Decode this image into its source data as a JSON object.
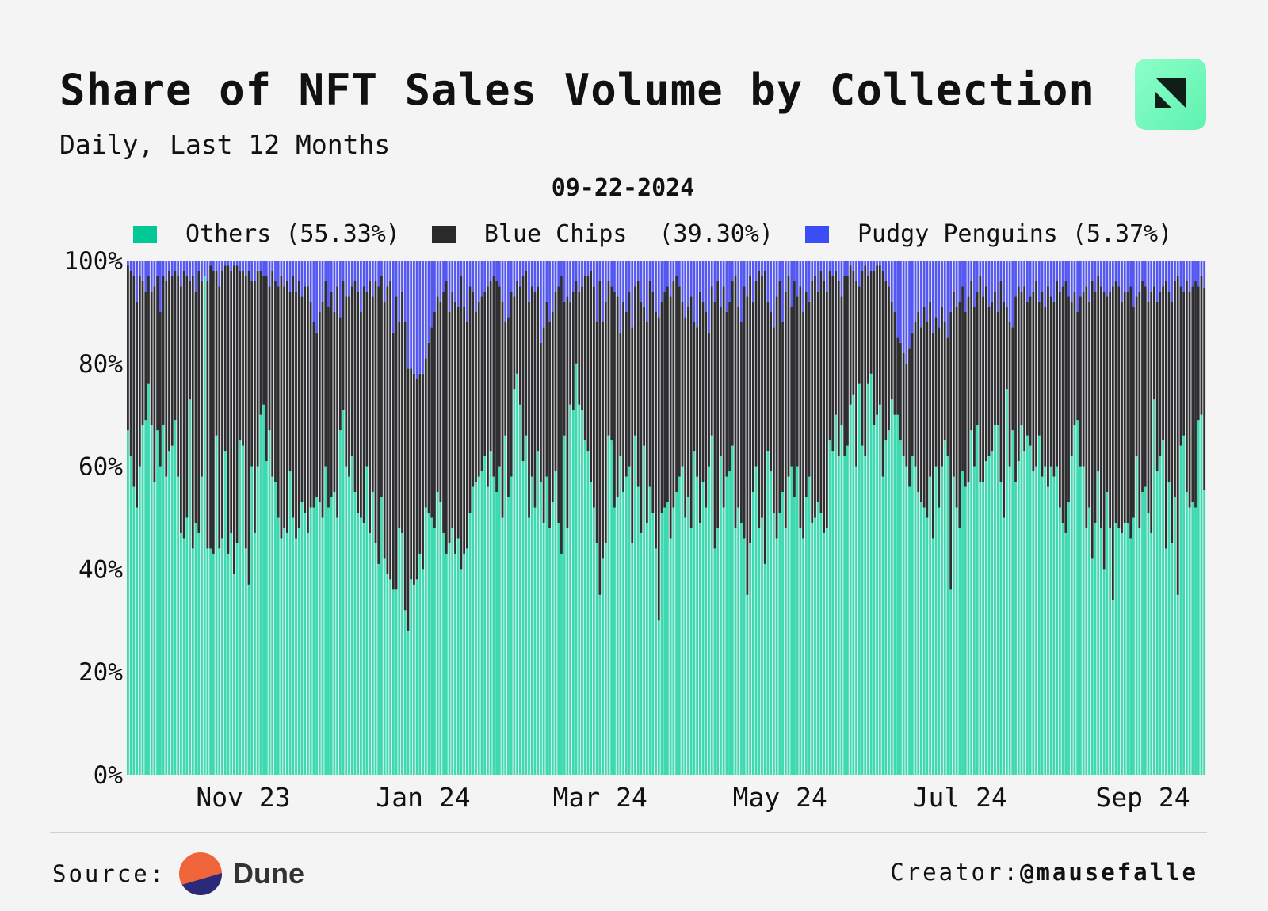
{
  "header": {
    "title": "Share of NFT Sales Volume by Collection",
    "subtitle": "Daily, Last 12 Months",
    "logo_icon": "dune-square-logo-icon"
  },
  "footer": {
    "source_label": "Source:",
    "source_name": "Dune",
    "creator_label": "Creator:",
    "creator_handle": "@mausefalle"
  },
  "colors": {
    "others": "#3dd9b0",
    "blue_chips": "#2e2e30",
    "pudgy_penguins": "#5457f2",
    "legend_others": "#00c996",
    "legend_blue_chips": "#2a2a2a",
    "legend_pudgy_penguins": "#3b4ef5"
  },
  "chart_data": {
    "type": "bar",
    "stacked": true,
    "normalized": true,
    "highlight_date": "09-22-2024",
    "legend": [
      {
        "name": "Others",
        "value": "(55.33%)"
      },
      {
        "name": "Blue Chips",
        "value": "(39.30%)"
      },
      {
        "name": "Pudgy Penguins",
        "value": "(5.37%)"
      }
    ],
    "legend_placement": "top",
    "ylim": [
      0,
      100
    ],
    "yticks": [
      "0%",
      "20%",
      "40%",
      "60%",
      "80%",
      "100%"
    ],
    "xticks": [
      {
        "label": "Nov 23",
        "date": "2023-11-01"
      },
      {
        "label": "Jan 24",
        "date": "2024-01-01"
      },
      {
        "label": "Mar 24",
        "date": "2024-03-01"
      },
      {
        "label": "May 24",
        "date": "2024-05-01"
      },
      {
        "label": "Jul 24",
        "date": "2024-07-01"
      },
      {
        "label": "Sep 24",
        "date": "2024-09-01"
      }
    ],
    "x_last_date": "2024-09-22",
    "grid": false,
    "series": [
      {
        "name": "Others",
        "values": [
          67,
          62,
          56,
          52,
          60,
          68,
          69,
          76,
          68,
          57,
          67,
          60,
          68,
          58,
          63,
          64,
          69,
          58,
          47,
          46,
          50,
          73,
          44,
          49,
          47,
          58,
          97,
          44,
          44,
          43,
          66,
          44,
          46,
          63,
          43,
          47,
          39,
          45,
          65,
          64,
          44,
          37,
          60,
          47,
          60,
          70,
          72,
          61,
          67,
          58,
          57,
          50,
          46,
          48,
          47,
          59,
          50,
          46,
          48,
          53,
          51,
          47,
          52,
          52,
          54,
          53,
          50,
          60,
          52,
          54,
          55,
          50,
          67,
          71,
          60,
          58,
          62,
          55,
          51,
          50,
          49,
          60,
          47,
          55,
          45,
          41,
          54,
          42,
          39,
          38,
          36,
          36,
          48,
          47,
          32,
          28,
          38,
          37,
          38,
          43,
          40,
          52,
          51,
          50,
          48,
          55,
          53,
          47,
          43,
          45,
          48,
          43,
          46,
          40,
          43,
          44,
          51,
          56,
          57,
          58,
          59,
          62,
          56,
          63,
          58,
          55,
          60,
          50,
          66,
          54,
          58,
          75,
          78,
          72,
          61,
          66,
          50,
          58,
          52,
          63,
          57,
          49,
          58,
          48,
          53,
          59,
          49,
          43,
          66,
          48,
          72,
          71,
          80,
          72,
          71,
          65,
          63,
          57,
          52,
          45,
          35,
          42,
          45,
          66,
          65,
          52,
          54,
          62,
          55,
          58,
          60,
          45,
          66,
          56,
          47,
          64,
          49,
          56,
          51,
          44,
          30,
          51,
          52,
          53,
          46,
          52,
          55,
          58,
          60,
          50,
          54,
          48,
          63,
          58,
          49,
          57,
          52,
          60,
          66,
          44,
          48,
          62,
          52,
          58,
          59,
          64,
          48,
          52,
          49,
          46,
          35,
          45,
          55,
          60,
          48,
          50,
          41,
          63,
          59,
          51,
          46,
          51,
          55,
          48,
          58,
          60,
          54,
          60,
          48,
          46,
          54,
          58,
          49,
          50,
          53,
          51,
          47,
          48,
          65,
          63,
          70,
          62,
          68,
          62,
          64,
          72,
          74,
          60,
          76,
          64,
          62,
          76,
          78,
          68,
          70,
          72,
          58,
          65,
          67,
          73,
          70,
          70,
          65,
          62,
          60,
          56,
          62,
          60,
          55,
          53,
          52,
          50,
          58,
          46,
          60,
          52,
          60,
          65,
          62,
          36,
          58,
          52,
          48,
          59,
          56,
          57,
          67,
          60,
          68,
          57,
          57,
          61,
          62,
          63,
          68,
          68,
          57,
          50,
          75,
          60,
          67,
          57,
          61,
          68,
          63,
          66,
          64,
          59,
          60,
          66,
          58,
          60,
          56,
          60,
          58,
          60,
          52,
          49,
          47,
          53,
          62,
          68,
          69,
          60,
          60,
          48,
          52,
          42,
          49,
          59,
          48,
          40,
          55,
          48,
          34,
          49,
          48,
          47,
          49,
          49,
          46,
          50,
          62,
          48,
          55,
          56,
          51,
          47,
          73,
          59,
          62,
          65,
          44,
          57,
          45,
          54,
          35,
          64,
          66,
          55,
          52,
          53,
          52,
          69,
          70,
          55.33
        ]
      },
      {
        "name": "Blue Chips",
        "values": [
          32,
          36,
          41,
          40,
          37,
          28,
          25,
          21,
          26,
          38,
          30,
          30,
          29,
          38,
          35,
          33,
          29,
          39,
          48,
          52,
          47,
          23,
          53,
          45,
          51,
          38,
          0,
          52,
          55,
          55,
          32,
          51,
          52,
          36,
          56,
          51,
          60,
          54,
          33,
          34,
          53,
          61,
          36,
          49,
          38,
          28,
          25,
          36,
          28,
          40,
          39,
          45,
          51,
          47,
          49,
          35,
          47,
          48,
          48,
          40,
          44,
          48,
          40,
          36,
          32,
          37,
          42,
          36,
          39,
          40,
          35,
          45,
          22,
          25,
          33,
          35,
          33,
          41,
          43,
          40,
          46,
          34,
          49,
          38,
          51,
          54,
          43,
          50,
          56,
          58,
          50,
          57,
          40,
          47,
          56,
          51,
          41,
          41,
          39,
          35,
          38,
          29,
          33,
          37,
          42,
          38,
          39,
          47,
          53,
          45,
          46,
          49,
          45,
          57,
          48,
          44,
          44,
          38,
          33,
          34,
          34,
          32,
          39,
          33,
          39,
          41,
          35,
          42,
          22,
          35,
          36,
          18,
          18,
          23,
          36,
          32,
          42,
          37,
          42,
          32,
          27,
          38,
          34,
          40,
          37,
          35,
          46,
          54,
          26,
          45,
          20,
          23,
          16,
          22,
          24,
          32,
          34,
          41,
          43,
          43,
          61,
          46,
          47,
          30,
          30,
          42,
          39,
          24,
          37,
          32,
          34,
          42,
          29,
          40,
          45,
          27,
          39,
          40,
          43,
          46,
          59,
          41,
          42,
          42,
          47,
          44,
          42,
          37,
          32,
          39,
          37,
          45,
          25,
          29,
          45,
          35,
          38,
          26,
          29,
          48,
          48,
          29,
          43,
          32,
          33,
          32,
          49,
          39,
          39,
          49,
          58,
          52,
          37,
          36,
          50,
          47,
          57,
          29,
          31,
          36,
          47,
          45,
          33,
          46,
          39,
          31,
          42,
          33,
          47,
          44,
          40,
          34,
          47,
          47,
          41,
          47,
          49,
          46,
          33,
          34,
          28,
          34,
          25,
          35,
          33,
          27,
          24,
          36,
          19,
          34,
          37,
          21,
          20,
          30,
          29,
          27,
          40,
          31,
          28,
          19,
          20,
          15,
          19,
          20,
          20,
          27,
          24,
          28,
          35,
          34,
          39,
          38,
          34,
          40,
          29,
          35,
          31,
          23,
          23,
          54,
          36,
          39,
          44,
          36,
          34,
          36,
          29,
          31,
          26,
          40,
          36,
          34,
          29,
          29,
          26,
          22,
          39,
          42,
          16,
          28,
          20,
          36,
          34,
          26,
          32,
          26,
          29,
          35,
          36,
          26,
          36,
          31,
          39,
          33,
          34,
          36,
          42,
          46,
          49,
          40,
          30,
          26,
          21,
          33,
          34,
          47,
          40,
          54,
          45,
          38,
          47,
          54,
          38,
          46,
          61,
          47,
          47,
          45,
          45,
          45,
          49,
          41,
          31,
          46,
          41,
          39,
          41,
          47,
          22,
          33,
          32,
          30,
          52,
          37,
          47,
          42,
          62,
          31,
          28,
          41,
          42,
          42,
          44,
          26,
          27,
          39.3
        ]
      },
      {
        "name": "Pudgy Penguins",
        "values": [
          1,
          2,
          3,
          8,
          3,
          4,
          6,
          3,
          6,
          5,
          3,
          10,
          3,
          4,
          2,
          3,
          2,
          3,
          5,
          2,
          3,
          4,
          3,
          6,
          2,
          4,
          3,
          4,
          1,
          2,
          2,
          5,
          2,
          1,
          1,
          2,
          1,
          1,
          2,
          2,
          3,
          2,
          4,
          4,
          2,
          2,
          3,
          3,
          5,
          2,
          4,
          5,
          3,
          5,
          4,
          6,
          3,
          6,
          4,
          7,
          5,
          5,
          8,
          12,
          14,
          10,
          8,
          4,
          9,
          6,
          10,
          5,
          11,
          4,
          7,
          7,
          5,
          4,
          6,
          10,
          5,
          6,
          4,
          7,
          4,
          5,
          3,
          8,
          5,
          4,
          14,
          7,
          12,
          6,
          12,
          21,
          21,
          22,
          23,
          22,
          22,
          19,
          16,
          13,
          10,
          7,
          8,
          6,
          4,
          10,
          6,
          8,
          9,
          3,
          9,
          12,
          5,
          6,
          10,
          8,
          7,
          6,
          5,
          4,
          3,
          4,
          5,
          8,
          12,
          11,
          6,
          7,
          4,
          5,
          3,
          2,
          8,
          5,
          6,
          5,
          16,
          13,
          8,
          12,
          10,
          6,
          5,
          3,
          8,
          7,
          8,
          6,
          4,
          6,
          5,
          3,
          3,
          2,
          5,
          12,
          4,
          12,
          8,
          4,
          5,
          6,
          7,
          14,
          8,
          10,
          6,
          13,
          5,
          4,
          8,
          9,
          12,
          4,
          6,
          10,
          11,
          8,
          6,
          5,
          7,
          4,
          3,
          5,
          8,
          11,
          9,
          7,
          12,
          13,
          6,
          8,
          10,
          14,
          5,
          8,
          4,
          9,
          5,
          10,
          8,
          4,
          3,
          9,
          12,
          5,
          7,
          3,
          8,
          4,
          2,
          3,
          2,
          8,
          10,
          13,
          7,
          4,
          12,
          6,
          3,
          9,
          4,
          7,
          5,
          10,
          6,
          8,
          4,
          3,
          6,
          2,
          4,
          6,
          2,
          3,
          2,
          4,
          7,
          3,
          3,
          1,
          2,
          4,
          5,
          2,
          1,
          3,
          2,
          2,
          1,
          1,
          2,
          4,
          5,
          8,
          10,
          15,
          16,
          18,
          20,
          17,
          14,
          12,
          10,
          13,
          9,
          12,
          8,
          14,
          11,
          13,
          9,
          12,
          15,
          10,
          6,
          9,
          8,
          5,
          10,
          7,
          4,
          9,
          6,
          3,
          7,
          5,
          9,
          8,
          6,
          10,
          4,
          8,
          9,
          12,
          13,
          7,
          5,
          6,
          5,
          8,
          7,
          6,
          4,
          8,
          6,
          9,
          5,
          7,
          8,
          4,
          6,
          5,
          4,
          7,
          8,
          6,
          10,
          7,
          6,
          5,
          8,
          4,
          6,
          3,
          5,
          6,
          7,
          6,
          5,
          4,
          5,
          8,
          6,
          6,
          5,
          9,
          7,
          6,
          4,
          5,
          8,
          6,
          5,
          8,
          6,
          5,
          4,
          6,
          8,
          4,
          3,
          5,
          6,
          4,
          6,
          5,
          4,
          5,
          3,
          5.37
        ]
      }
    ]
  }
}
